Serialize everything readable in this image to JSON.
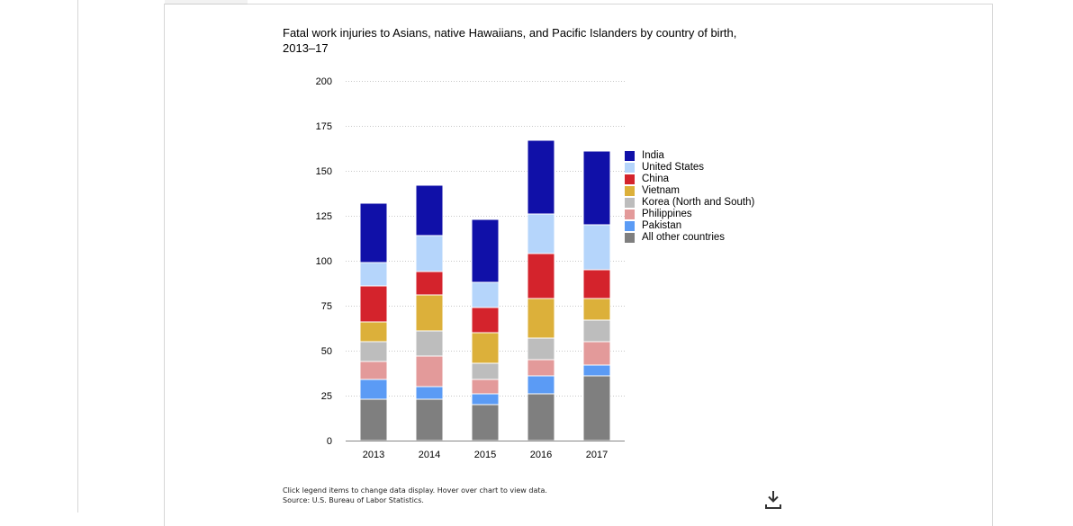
{
  "chart_data": {
    "type": "bar",
    "stacked": true,
    "title": "Fatal work injuries to Asians, native Hawaiians, and Pacific Islanders by country of birth, 2013–17",
    "categories": [
      "2013",
      "2014",
      "2015",
      "2016",
      "2017"
    ],
    "xlabel": "",
    "ylabel": "",
    "ylim": [
      0,
      200
    ],
    "yticks": [
      0,
      25,
      50,
      75,
      100,
      125,
      150,
      175,
      200
    ],
    "grid": true,
    "legend_position": "right",
    "series": [
      {
        "name": "All other countries",
        "color": "#7f7f7f",
        "values": [
          23,
          23,
          20,
          26,
          36
        ]
      },
      {
        "name": "Pakistan",
        "color": "#5b9bf5",
        "values": [
          11,
          7,
          6,
          10,
          6
        ]
      },
      {
        "name": "Philippines",
        "color": "#e39a9a",
        "values": [
          10,
          17,
          8,
          9,
          13
        ]
      },
      {
        "name": "Korea (North and South)",
        "color": "#bdbdbd",
        "values": [
          11,
          14,
          9,
          12,
          12
        ]
      },
      {
        "name": "Vietnam",
        "color": "#dcb03a",
        "values": [
          11,
          20,
          17,
          22,
          12
        ]
      },
      {
        "name": "China",
        "color": "#d4232c",
        "values": [
          20,
          13,
          14,
          25,
          16
        ]
      },
      {
        "name": "United States",
        "color": "#b5d5fb",
        "values": [
          13,
          20,
          14,
          22,
          25
        ]
      },
      {
        "name": "India",
        "color": "#1010a8",
        "values": [
          33,
          28,
          35,
          41,
          41
        ]
      }
    ],
    "legend_order": [
      "India",
      "United States",
      "China",
      "Vietnam",
      "Korea (North and South)",
      "Philippines",
      "Pakistan",
      "All other countries"
    ]
  },
  "footer": {
    "note": "Click legend items to change data display. Hover over chart to view data.",
    "source": "Source: U.S. Bureau of Labor Statistics."
  },
  "icons": {
    "download": "download-icon"
  }
}
